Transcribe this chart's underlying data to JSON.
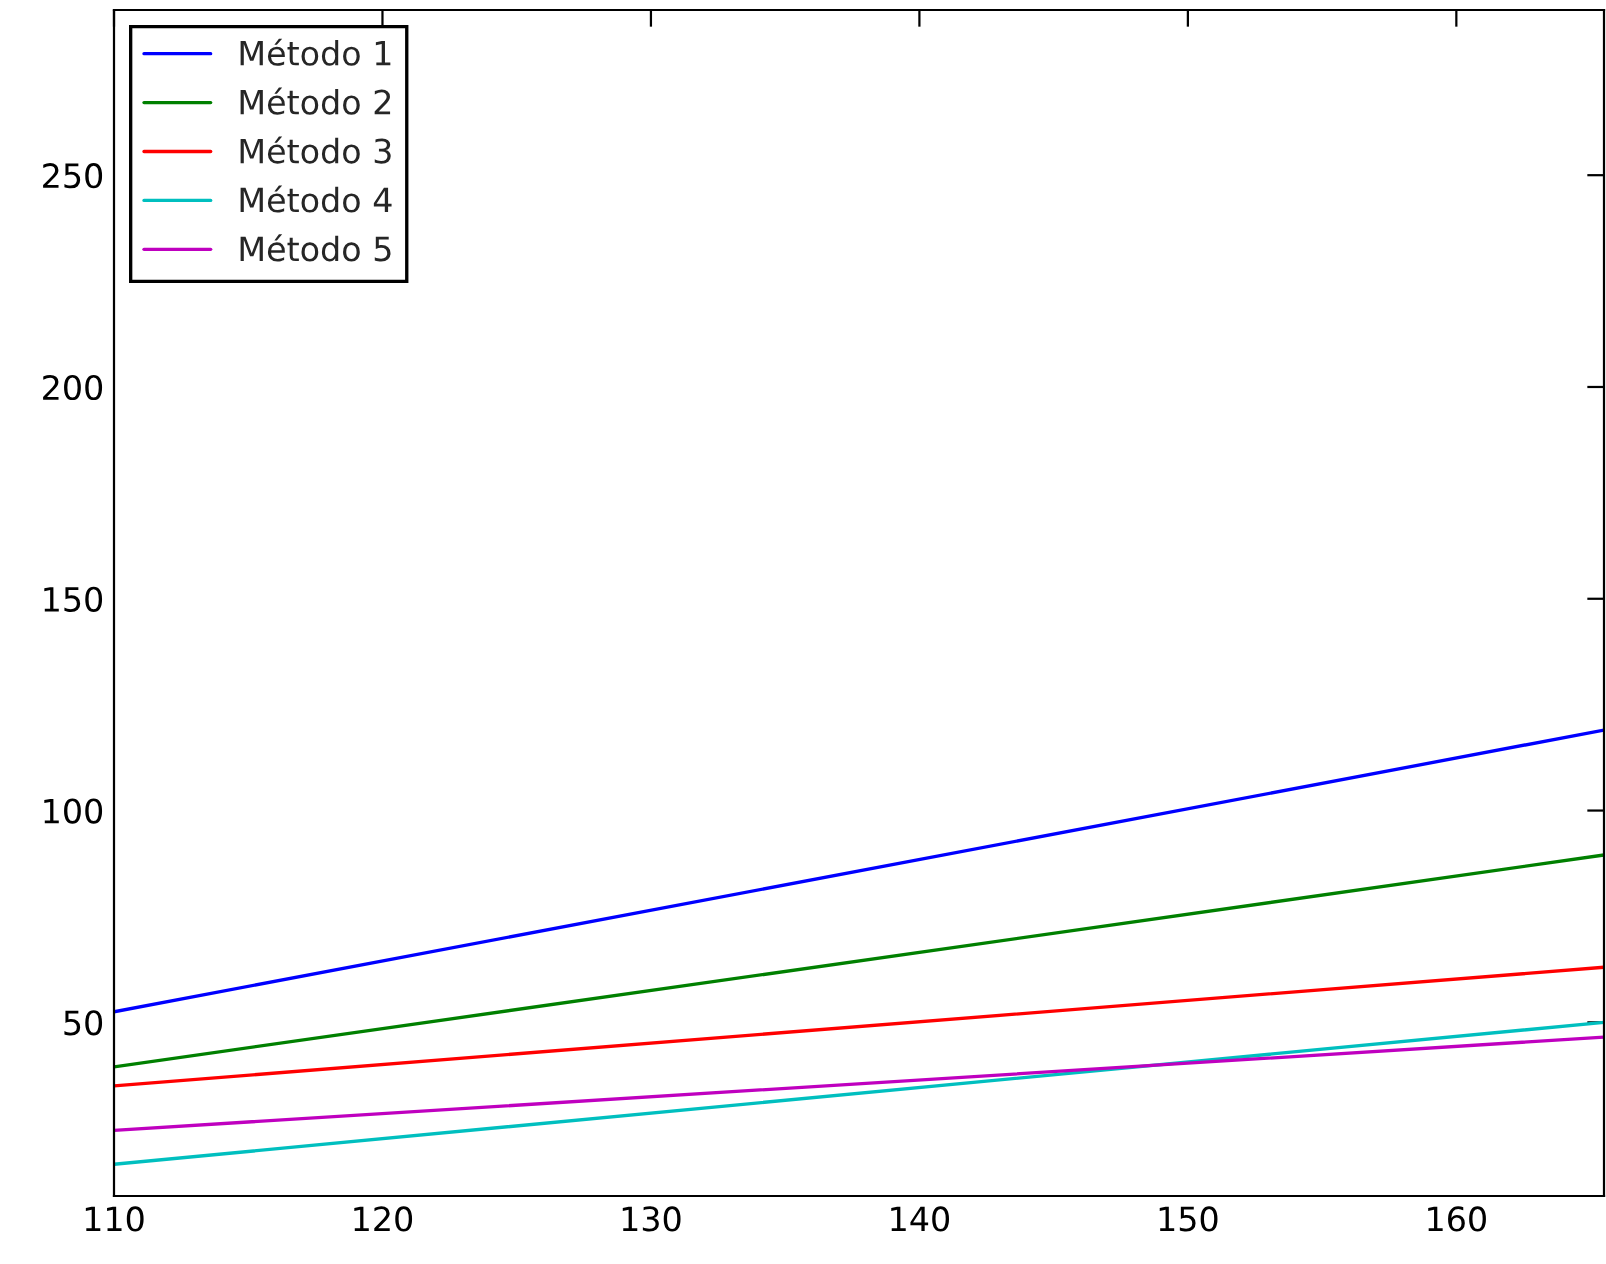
{
  "chart_data": {
    "type": "line",
    "x": [
      110,
      165.5
    ],
    "series": [
      {
        "name": "Método 1",
        "color": "#0000ff",
        "values": [
          52.5,
          119
        ]
      },
      {
        "name": "Método 2",
        "color": "#008000",
        "values": [
          39.5,
          89.5
        ]
      },
      {
        "name": "Método 3",
        "color": "#ff0000",
        "values": [
          35,
          63
        ]
      },
      {
        "name": "Método 4",
        "color": "#00bfbf",
        "values": [
          16.5,
          50
        ]
      },
      {
        "name": "Método 5",
        "color": "#bf00bf",
        "values": [
          24.5,
          46.5
        ]
      }
    ],
    "xlim": [
      110,
      165.5
    ],
    "xticks": [
      110,
      120,
      130,
      140,
      150,
      160
    ],
    "ylim": [
      9,
      289
    ],
    "yticks": [
      50,
      100,
      150,
      200,
      250
    ],
    "grid": false,
    "legend": "top left",
    "marker": "none",
    "line_style": "solid"
  }
}
